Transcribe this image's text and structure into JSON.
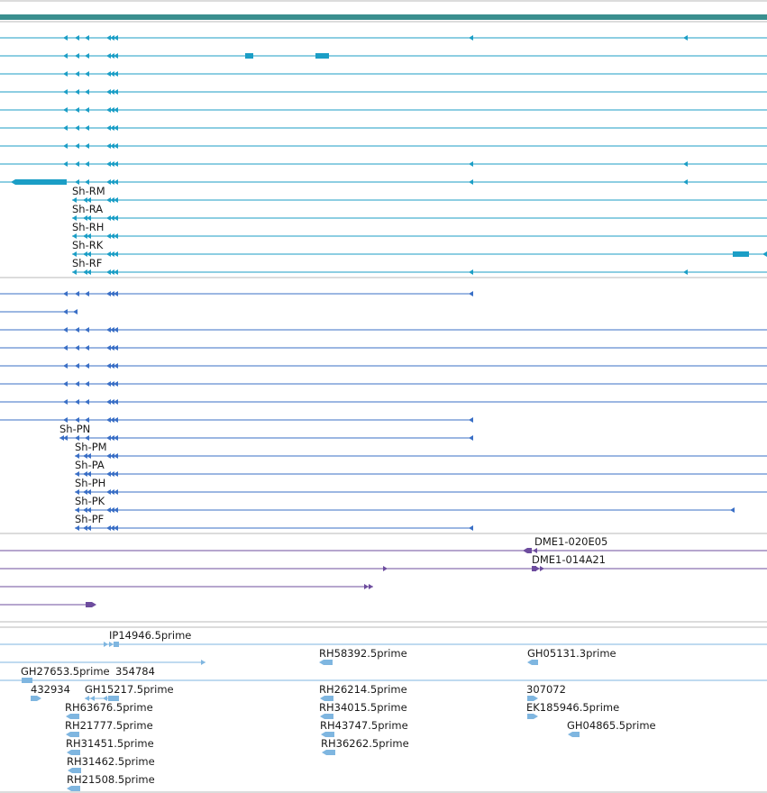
{
  "colors": {
    "header_bar": "#3a8f8f",
    "transcript_rna": "#1b9ec6",
    "transcript_protein": "#3a6fc6",
    "cdna_clone": "#6d4c9e",
    "est_read": "#7fb6e0",
    "divider": "#b8b8b8",
    "label_text": "#1a1a1a"
  },
  "tracks": {
    "rna_transcripts": {
      "row_count": 14,
      "labels": [
        "Sh-RM",
        "Sh-RA",
        "Sh-RH",
        "Sh-RK",
        "Sh-RF"
      ]
    },
    "protein_products": {
      "row_count": 14,
      "labels": [
        "Sh-PN",
        "Sh-PM",
        "Sh-PA",
        "Sh-PH",
        "Sh-PK",
        "Sh-PF"
      ]
    },
    "cdna_clones": {
      "labels": [
        "DME1-020E05",
        "DME1-014A21"
      ]
    },
    "est_reads": {
      "labels": [
        "IP14946.5prime",
        "RH58392.5prime",
        "GH05131.3prime",
        "GH27653.5prime",
        "354784",
        "432934",
        "GH15217.5prime",
        "RH26214.5prime",
        "307072",
        "RH63676.5prime",
        "RH34015.5prime",
        "EK185946.5prime",
        "RH21777.5prime",
        "RH43747.5prime",
        "GH04865.5prime",
        "RH31451.5prime",
        "RH36262.5prime",
        "RH31462.5prime",
        "RH21508.5prime"
      ]
    }
  }
}
